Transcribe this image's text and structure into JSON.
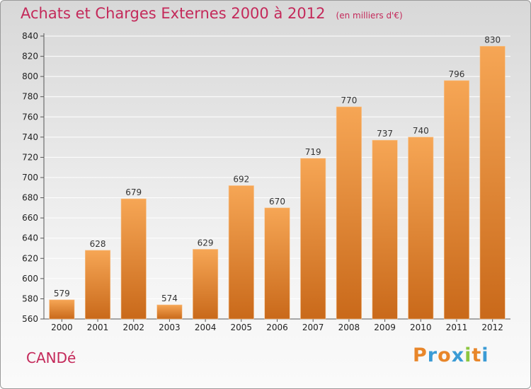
{
  "header": {
    "title": "Achats et Charges Externes 2000 à 2012",
    "unit_note": "(en milliers d'€)"
  },
  "footer": {
    "commune": "CANDé",
    "logo": {
      "letters": [
        "P",
        "r",
        "o",
        "x",
        "i",
        "t",
        "i"
      ],
      "colors": [
        "#e8862a",
        "#3a9bd5",
        "#e8862a",
        "#3a9bd5",
        "#8cc63f",
        "#e8862a",
        "#3a9bd5"
      ]
    }
  },
  "colors": {
    "title": "#c4295a",
    "bar_top": "#f6a655",
    "bar_bottom": "#c9691a",
    "grid": "#ffffff"
  },
  "chart_data": {
    "type": "bar",
    "title": "Achats et Charges Externes 2000 à 2012",
    "subtitle": "(en milliers d'€)",
    "xlabel": "",
    "ylabel": "",
    "categories": [
      "2000",
      "2001",
      "2002",
      "2003",
      "2004",
      "2005",
      "2006",
      "2007",
      "2008",
      "2009",
      "2010",
      "2011",
      "2012"
    ],
    "values": [
      579,
      628,
      679,
      574,
      629,
      692,
      670,
      719,
      770,
      737,
      740,
      796,
      830
    ],
    "ylim": [
      560,
      840
    ],
    "yticks": [
      560,
      580,
      600,
      620,
      640,
      660,
      680,
      700,
      720,
      740,
      760,
      780,
      800,
      820,
      840
    ],
    "grid": true,
    "legend": "none"
  }
}
